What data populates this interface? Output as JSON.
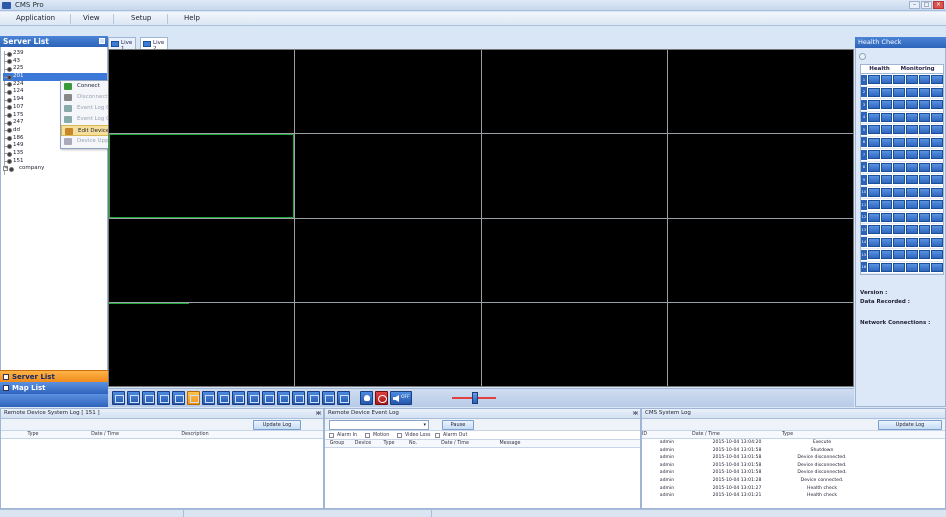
{
  "window": {
    "title": "CMS Pro"
  },
  "menu": [
    "Application",
    "View",
    "Setup",
    "Help"
  ],
  "server_list": {
    "title": "Server List",
    "devices": [
      "239",
      "43",
      "225",
      "201",
      "224",
      "124",
      "194",
      "107",
      "175",
      "247",
      "dd",
      "186",
      "149",
      "135",
      "151"
    ],
    "selected": "201",
    "group": "company"
  },
  "context_menu": {
    "items": [
      {
        "label": "Connect",
        "enabled": true,
        "icon": "connect-icon"
      },
      {
        "label": "Disconnect",
        "enabled": false,
        "icon": "disconnect-icon"
      },
      {
        "label": "Event Log On",
        "enabled": false,
        "icon": "event-log-on-icon"
      },
      {
        "label": "Event Log Off",
        "enabled": false,
        "icon": "event-log-off-icon"
      },
      {
        "label": "Edit Device",
        "enabled": true,
        "highlighted": true,
        "icon": "edit-device-icon"
      },
      {
        "label": "Device Uppackage",
        "enabled": false,
        "icon": "device-uppackage-icon"
      }
    ]
  },
  "tabs": [
    {
      "label": "Live 1",
      "active": false
    },
    {
      "label": "Live 2",
      "active": true
    }
  ],
  "nav": {
    "server_list": "Server List",
    "map_list": "Map List"
  },
  "toolbar": {
    "volume_label": "OFF"
  },
  "health_check": {
    "title": "Health Check",
    "columns": [
      "Health",
      "Monitoring"
    ],
    "rows": [
      "1",
      "2",
      "3",
      "4",
      "5",
      "6",
      "7",
      "8",
      "9",
      "10",
      "11",
      "12",
      "13",
      "14",
      "15",
      "16"
    ],
    "version_label": "Version :",
    "data_recorded_label": "Data Recorded :",
    "network_connections_label": "Network Connections :"
  },
  "remote_system_log": {
    "title": "Remote Device System Log  [ 151 ]",
    "update_button": "Update Log",
    "columns": [
      "Type",
      "Date / Time",
      "Description"
    ]
  },
  "remote_event_log": {
    "title": "Remote Device Event Log",
    "pause_button": "Pause",
    "filters": [
      "Alarm In",
      "Motion",
      "Video Loss",
      "Alarm Out"
    ],
    "columns": [
      "Group",
      "Device",
      "Type",
      "No.",
      "Date / Time",
      "Message"
    ]
  },
  "cms_system_log": {
    "title": "CMS System Log",
    "update_button": "Update Log",
    "columns": [
      "ID",
      "Date / Time",
      "Type"
    ],
    "rows": [
      {
        "id": "admin",
        "datetime": "2015-10-04 13:04:20",
        "type": "Execute"
      },
      {
        "id": "admin",
        "datetime": "2015-10-04 13:01:58",
        "type": "Shutdown"
      },
      {
        "id": "admin",
        "datetime": "2015-10-04 13:01:58",
        "type": "Device disconnected."
      },
      {
        "id": "admin",
        "datetime": "2015-10-04 13:01:58",
        "type": "Device disconnected."
      },
      {
        "id": "admin",
        "datetime": "2015-10-04 13:01:58",
        "type": "Device disconnected."
      },
      {
        "id": "admin",
        "datetime": "2015-10-04 13:01:28",
        "type": "Device connected."
      },
      {
        "id": "admin",
        "datetime": "2015-10-04 13:01:27",
        "type": "Health check"
      },
      {
        "id": "admin",
        "datetime": "2015-10-04 13:01:21",
        "type": "Health check"
      }
    ]
  },
  "colors": {
    "accent": "#2a63b8",
    "highlight": "#f08a1c",
    "grid_line": "#22a63b"
  }
}
